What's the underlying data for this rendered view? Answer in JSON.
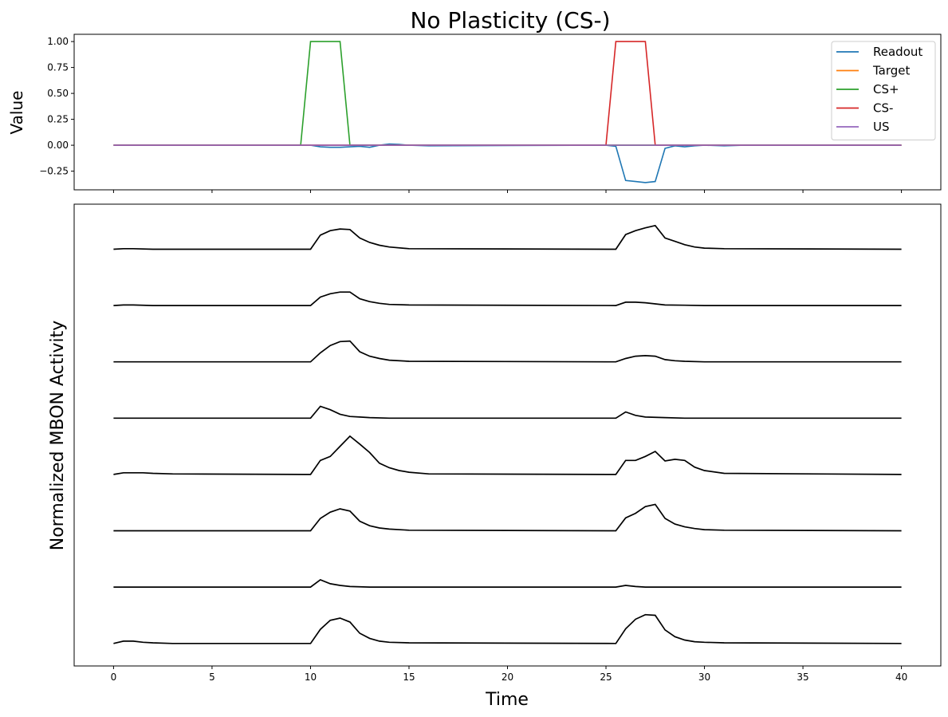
{
  "title": "No Plasticity (CS-)",
  "chart_data": [
    {
      "type": "line",
      "panel": "top",
      "ylabel": "Value",
      "xlim": [
        -2,
        42
      ],
      "ylim": [
        -0.43,
        1.07
      ],
      "xticks": [
        0,
        5,
        10,
        15,
        20,
        25,
        30,
        35,
        40
      ],
      "yticks": [
        -0.25,
        0.0,
        0.25,
        0.5,
        0.75,
        1.0
      ],
      "ytick_labels": [
        "−0.25",
        "0.00",
        "0.25",
        "0.50",
        "0.75",
        "1.00"
      ],
      "grid": false,
      "legend": "top-right",
      "series": [
        {
          "name": "Readout",
          "color": "#1f77b4",
          "x": [
            0,
            10,
            10.5,
            11,
            11.5,
            12,
            12.5,
            13,
            13.5,
            14,
            14.5,
            15,
            16,
            25,
            25.5,
            26,
            26.5,
            27,
            27.5,
            28,
            28.5,
            29,
            29.5,
            30,
            31,
            32,
            40
          ],
          "y": [
            0,
            0,
            -0.015,
            -0.02,
            -0.02,
            -0.015,
            -0.01,
            -0.02,
            0,
            0.012,
            0.008,
            0,
            -0.005,
            0,
            -0.01,
            -0.34,
            -0.35,
            -0.36,
            -0.35,
            -0.03,
            -0.005,
            -0.015,
            -0.005,
            0,
            -0.005,
            0,
            0
          ]
        },
        {
          "name": "Target",
          "color": "#ff7f0e",
          "x": [
            0,
            40
          ],
          "y": [
            0,
            0
          ]
        },
        {
          "name": "CS+",
          "color": "#2ca02c",
          "x": [
            0,
            9.5,
            10,
            11.5,
            12,
            40
          ],
          "y": [
            0,
            0,
            1,
            1,
            0,
            0
          ]
        },
        {
          "name": "CS-",
          "color": "#d62728",
          "x": [
            0,
            25,
            25.5,
            27,
            27.5,
            40
          ],
          "y": [
            0,
            0,
            1,
            1,
            0,
            0
          ]
        },
        {
          "name": "US",
          "color": "#9467bd",
          "x": [
            0,
            40
          ],
          "y": [
            0,
            0
          ]
        }
      ]
    },
    {
      "type": "line",
      "panel": "bottom",
      "xlabel": "Time",
      "ylabel": "Normalized MBON Activity",
      "xlim": [
        -2,
        42
      ],
      "ylim": [
        -0.4,
        7.8
      ],
      "xticks": [
        0,
        5,
        10,
        15,
        20,
        25,
        30,
        35,
        40
      ],
      "yticks": [],
      "grid": false,
      "color": "#000000",
      "series": [
        {
          "offset": 7,
          "x": [
            0,
            0.5,
            1,
            2,
            10,
            10.5,
            11,
            11.5,
            12,
            12.5,
            13,
            13.5,
            14,
            15,
            25.5,
            26,
            26.5,
            27,
            27.5,
            28,
            28.5,
            29,
            29.5,
            30,
            31,
            40
          ],
          "y": [
            0,
            0.01,
            0.01,
            0,
            0,
            0.25,
            0.33,
            0.36,
            0.35,
            0.2,
            0.12,
            0.07,
            0.04,
            0.01,
            0,
            0.26,
            0.33,
            0.38,
            0.42,
            0.2,
            0.14,
            0.08,
            0.04,
            0.02,
            0.01,
            0
          ]
        },
        {
          "offset": 6,
          "x": [
            0,
            0.5,
            1,
            2,
            10,
            10.5,
            11,
            11.5,
            12,
            12.5,
            13,
            13.5,
            14,
            15,
            25.5,
            26,
            26.5,
            27,
            27.5,
            28,
            29,
            30,
            40
          ],
          "y": [
            0,
            0.01,
            0.01,
            0,
            0,
            0.15,
            0.21,
            0.24,
            0.24,
            0.12,
            0.07,
            0.04,
            0.02,
            0.01,
            0,
            0.06,
            0.06,
            0.05,
            0.03,
            0.01,
            0.005,
            0,
            0
          ]
        },
        {
          "offset": 5,
          "x": [
            0,
            10,
            10.5,
            11,
            11.5,
            12,
            12.5,
            13,
            13.5,
            14,
            15,
            25.5,
            26,
            26.5,
            27,
            27.5,
            28,
            28.5,
            29,
            30,
            40
          ],
          "y": [
            0,
            0,
            0.16,
            0.29,
            0.36,
            0.37,
            0.18,
            0.1,
            0.06,
            0.03,
            0.01,
            0,
            0.06,
            0.1,
            0.11,
            0.1,
            0.04,
            0.02,
            0.01,
            0,
            0
          ]
        },
        {
          "offset": 4,
          "x": [
            0,
            10,
            10.5,
            11,
            11.5,
            12,
            12.5,
            13,
            14,
            25.5,
            26,
            26.5,
            27,
            28,
            29,
            40
          ],
          "y": [
            0,
            0,
            0.21,
            0.15,
            0.07,
            0.03,
            0.02,
            0.01,
            0,
            0,
            0.11,
            0.05,
            0.02,
            0.01,
            0,
            0
          ]
        },
        {
          "offset": 3,
          "x": [
            0,
            0.5,
            1,
            1.5,
            2,
            3,
            10,
            10.5,
            11,
            11.5,
            12,
            12.5,
            13,
            13.5,
            14,
            14.5,
            15,
            16,
            25.5,
            26,
            26.5,
            27,
            27.5,
            28,
            28.5,
            29,
            29.5,
            30,
            31,
            40
          ],
          "y": [
            0,
            0.03,
            0.03,
            0.03,
            0.02,
            0.01,
            0,
            0.25,
            0.32,
            0.5,
            0.68,
            0.54,
            0.39,
            0.2,
            0.12,
            0.07,
            0.04,
            0.01,
            0,
            0.25,
            0.25,
            0.32,
            0.41,
            0.24,
            0.27,
            0.25,
            0.13,
            0.07,
            0.02,
            0
          ]
        },
        {
          "offset": 2,
          "x": [
            0,
            10,
            10.5,
            11,
            11.5,
            12,
            12.5,
            13,
            13.5,
            14,
            15,
            25.5,
            26,
            26.5,
            27,
            27.5,
            28,
            28.5,
            29,
            29.5,
            30,
            31,
            40
          ],
          "y": [
            0,
            0,
            0.22,
            0.33,
            0.39,
            0.35,
            0.17,
            0.09,
            0.05,
            0.03,
            0.01,
            0,
            0.23,
            0.31,
            0.43,
            0.47,
            0.22,
            0.12,
            0.07,
            0.04,
            0.02,
            0.01,
            0
          ]
        },
        {
          "offset": 1,
          "x": [
            0,
            10,
            10.5,
            11,
            11.5,
            12,
            13,
            25.5,
            26,
            26.5,
            27,
            40
          ],
          "y": [
            0,
            0,
            0.13,
            0.06,
            0.03,
            0.01,
            0,
            0,
            0.03,
            0.01,
            0,
            0
          ]
        },
        {
          "offset": 0,
          "x": [
            0,
            0.5,
            1,
            1.5,
            2,
            3,
            10,
            10.5,
            11,
            11.5,
            12,
            12.5,
            13,
            13.5,
            14,
            15,
            25.5,
            26,
            26.5,
            27,
            27.5,
            28,
            28.5,
            29,
            29.5,
            30,
            31,
            40
          ],
          "y": [
            0,
            0.04,
            0.04,
            0.02,
            0.01,
            0,
            0,
            0.25,
            0.41,
            0.45,
            0.38,
            0.18,
            0.09,
            0.04,
            0.02,
            0.01,
            0,
            0.26,
            0.43,
            0.51,
            0.5,
            0.24,
            0.12,
            0.06,
            0.03,
            0.02,
            0.01,
            0
          ]
        }
      ]
    }
  ]
}
